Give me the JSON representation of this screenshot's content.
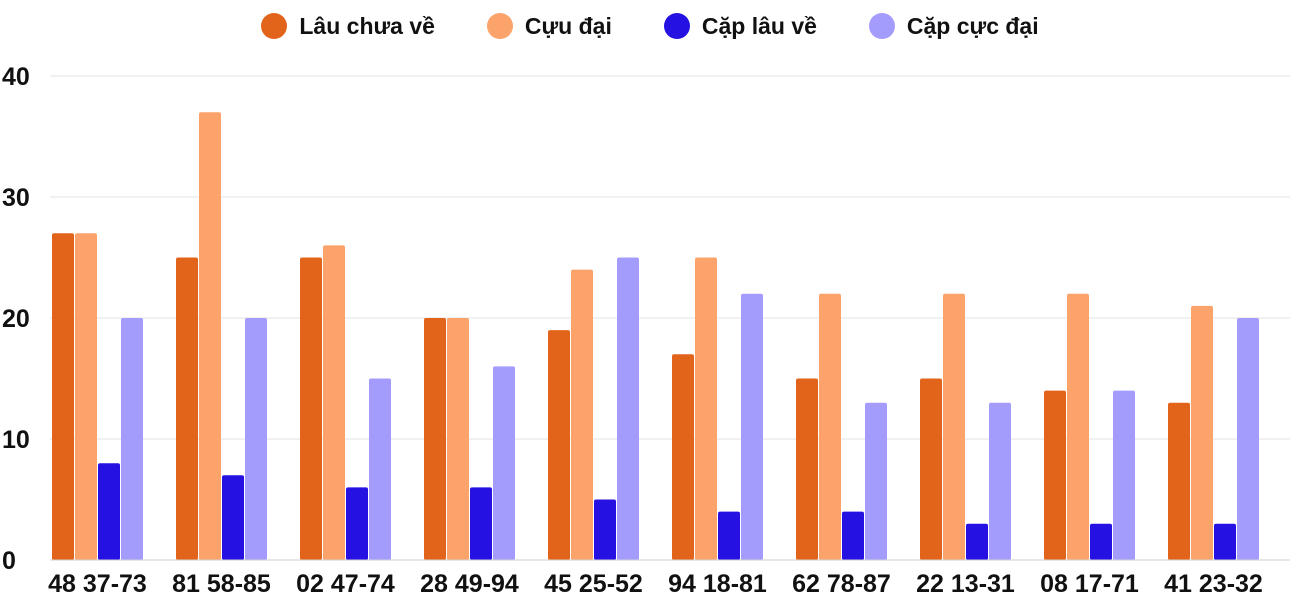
{
  "chart_data": {
    "type": "bar",
    "title": "",
    "xlabel": "",
    "ylabel": "",
    "ylim": [
      0,
      40
    ],
    "yticks": [
      0,
      10,
      20,
      30,
      40
    ],
    "grid": true,
    "legend_position": "top-center",
    "categories": [
      "48 37-73",
      "81 58-85",
      "02 47-74",
      "28 49-94",
      "45 25-52",
      "94 18-81",
      "62 78-87",
      "22 13-31",
      "08 17-71",
      "41 23-32"
    ],
    "series": [
      {
        "name": "Lâu chưa về",
        "color": "#e2641b",
        "values": [
          27,
          25,
          25,
          20,
          19,
          17,
          15,
          15,
          14,
          13
        ]
      },
      {
        "name": "Cựu đại",
        "color": "#fba36a",
        "values": [
          27,
          37,
          26,
          20,
          24,
          25,
          22,
          22,
          22,
          21
        ]
      },
      {
        "name": "Cặp lâu về",
        "color": "#2511e2",
        "values": [
          8,
          7,
          6,
          6,
          5,
          4,
          4,
          3,
          3,
          3
        ]
      },
      {
        "name": "Cặp cực đại",
        "color": "#a49cfd",
        "values": [
          20,
          20,
          15,
          16,
          25,
          22,
          13,
          13,
          14,
          20
        ]
      }
    ]
  }
}
